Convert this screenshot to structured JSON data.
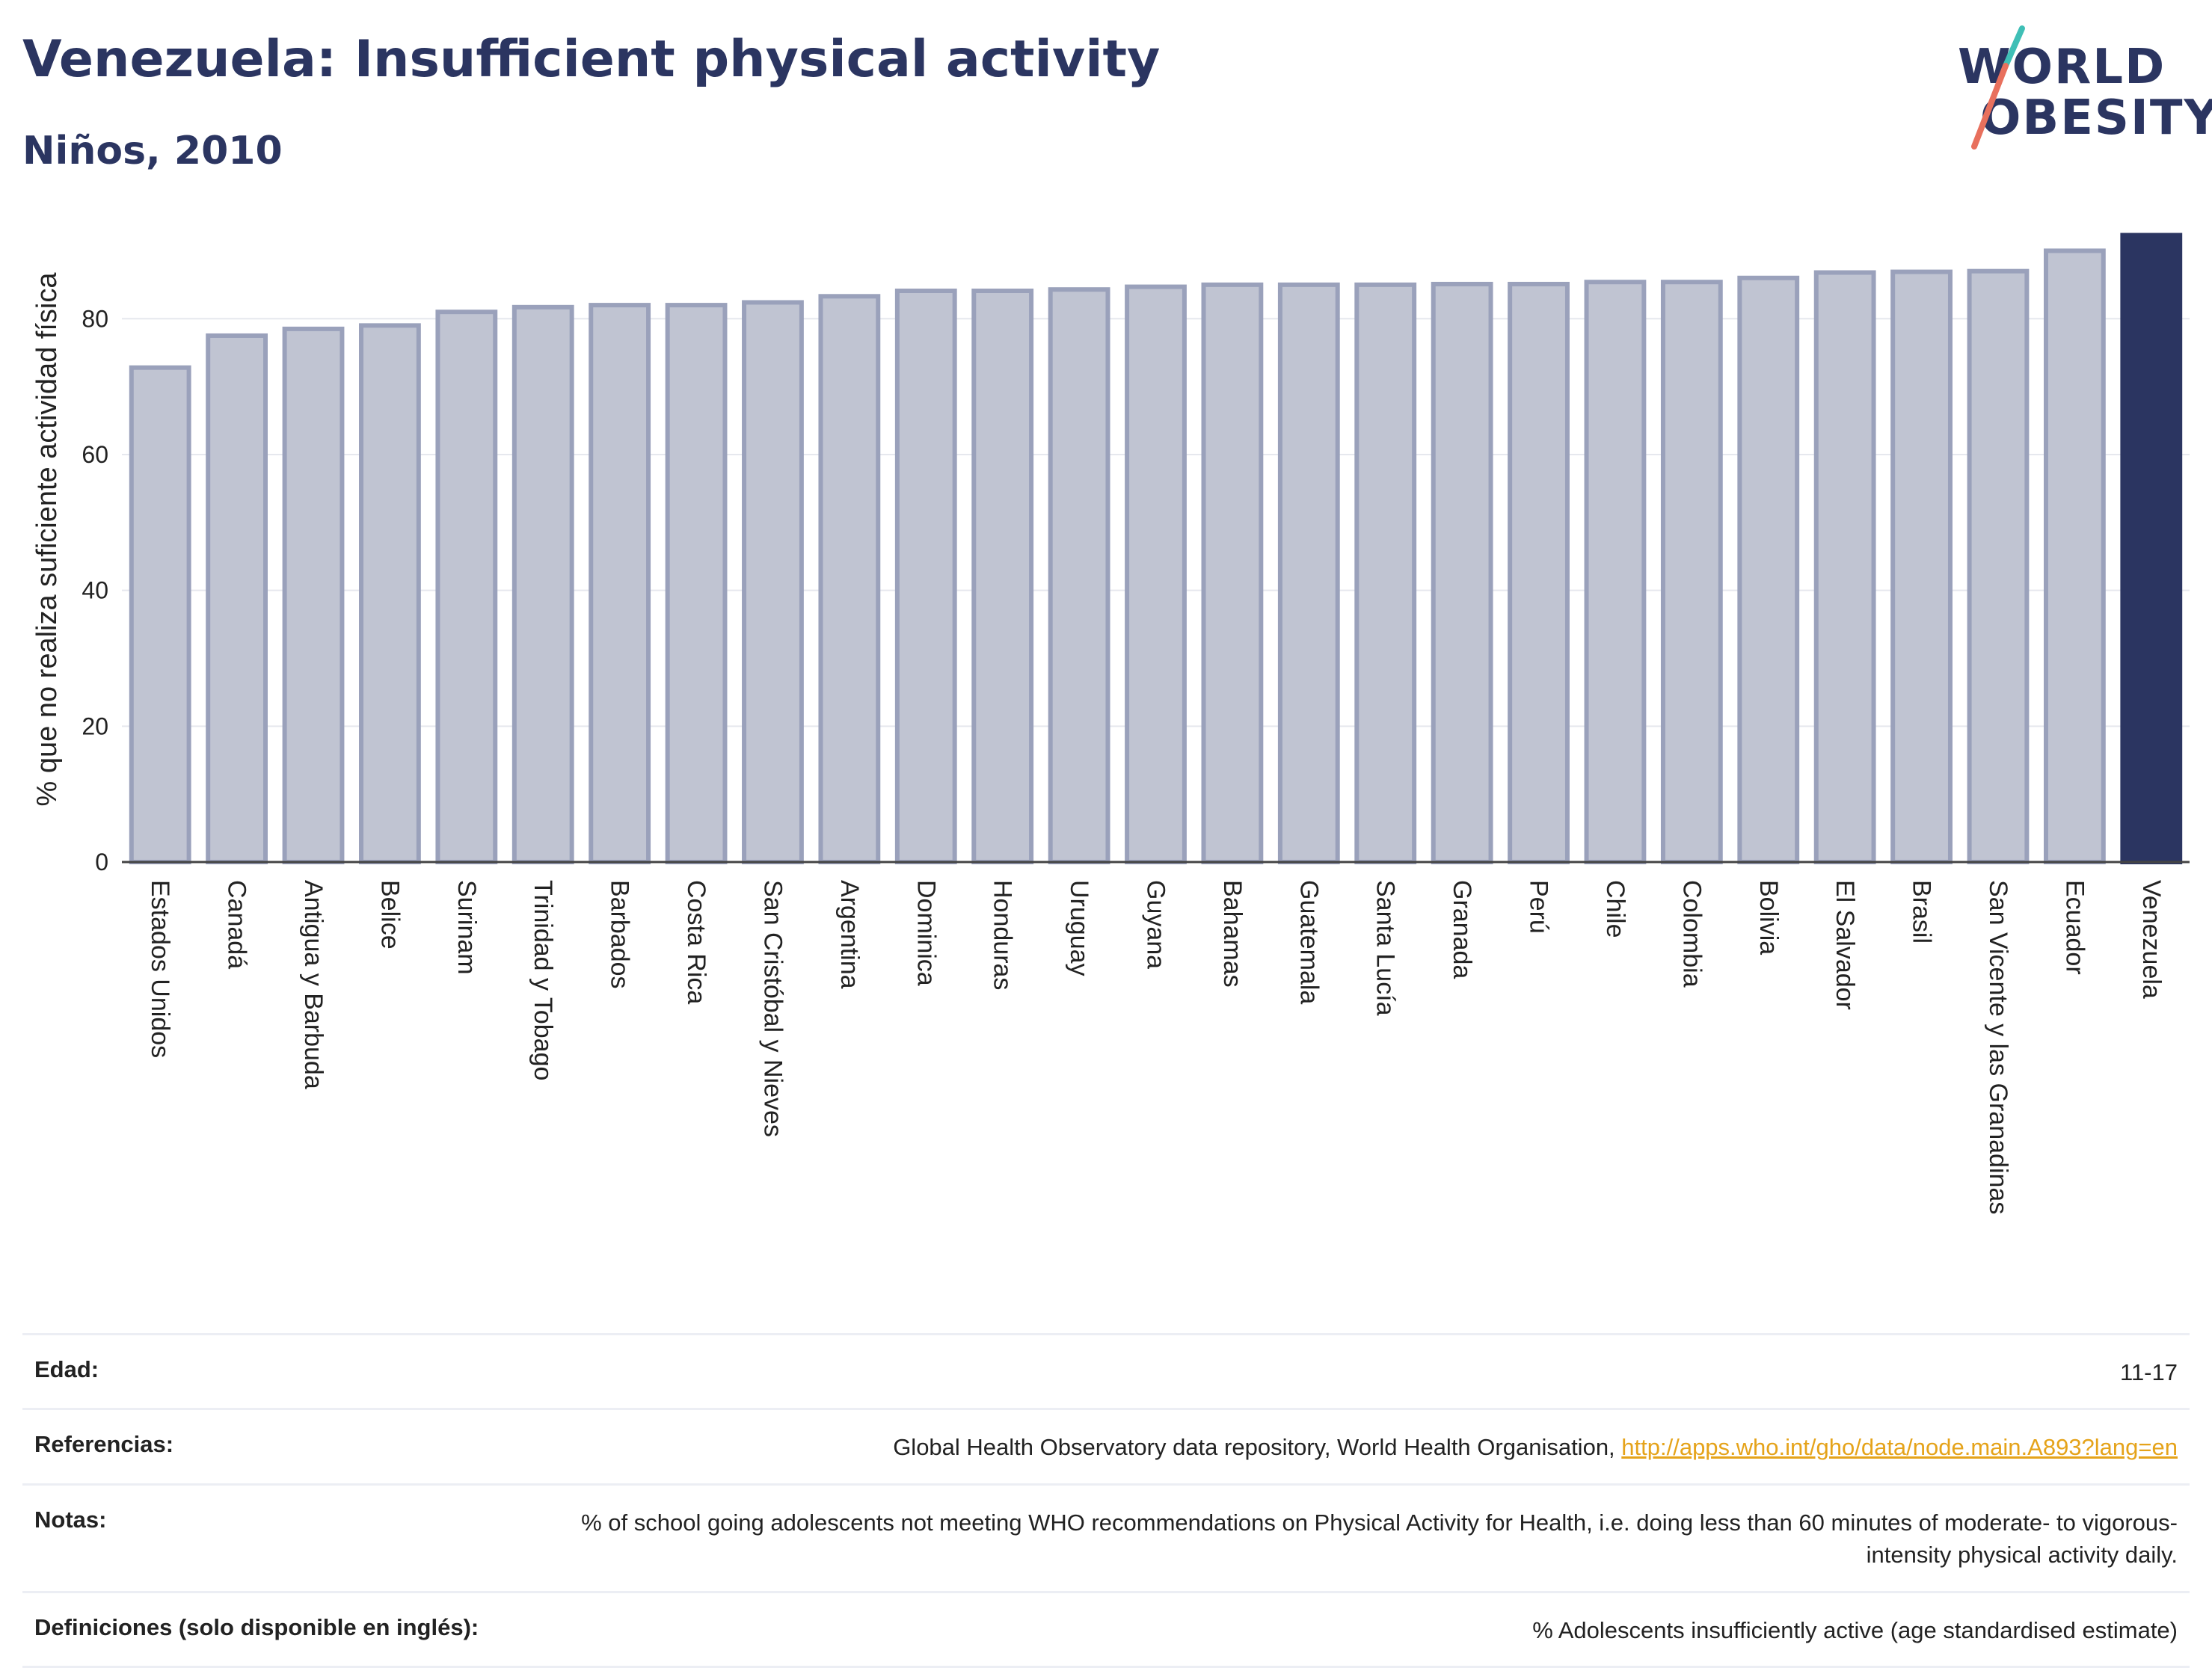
{
  "header": {
    "title": "Venezuela: Insufficient physical activity",
    "subtitle": "Niños, 2010"
  },
  "logo": {
    "line1": "WORLD",
    "line2": "OBESITY"
  },
  "colors": {
    "bar_fill": "#c0c4d2",
    "bar_stroke": "#9aa1bb",
    "highlight": "#2b3561",
    "title": "#2b3561",
    "link": "#e5a31a",
    "logo_teal": "#3fbfb6",
    "logo_coral": "#e8705d"
  },
  "chart_data": {
    "type": "bar",
    "ylabel": "% que no realiza suficiente actividad física",
    "ylim": [
      0,
      95
    ],
    "yticks": [
      0,
      20,
      40,
      60,
      80
    ],
    "grid": true,
    "categories": [
      "Estados Unidos",
      "Canadá",
      "Antigua y Barbuda",
      "Belice",
      "Surinam",
      "Trinidad y Tobago",
      "Barbados",
      "Costa Rica",
      "San Cristóbal y Nieves",
      "Argentina",
      "Dominica",
      "Honduras",
      "Uruguay",
      "Guyana",
      "Bahamas",
      "Guatemala",
      "Santa Lucía",
      "Granada",
      "Perú",
      "Chile",
      "Colombia",
      "Bolivia",
      "El Salvador",
      "Brasil",
      "San Vicente y las Granadinas",
      "Ecuador",
      "Venezuela"
    ],
    "values": [
      72.8,
      77.5,
      78.5,
      79.0,
      81.0,
      81.7,
      82.0,
      82.0,
      82.4,
      83.3,
      84.1,
      84.1,
      84.3,
      84.7,
      85.0,
      85.0,
      85.0,
      85.1,
      85.1,
      85.4,
      85.4,
      86.0,
      86.8,
      86.9,
      87.0,
      90.0,
      92.3
    ],
    "highlight": "Venezuela"
  },
  "meta": {
    "age_label": "Edad:",
    "age_value": "11-17",
    "refs_label": "Referencias:",
    "refs_text": "Global Health Observatory data repository, World Health Organisation, ",
    "refs_link": "http://apps.who.int/gho/data/node.main.A893?lang=en",
    "notes_label": "Notas:",
    "notes_value": "% of school going adolescents not meeting WHO recommendations on Physical Activity for Health, i.e. doing less than 60 minutes of moderate- to vigorous-intensity physical activity daily.",
    "defs_label": "Definiciones (solo disponible en inglés):",
    "defs_value": "% Adolescents insufficiently active (age standardised estimate)"
  }
}
